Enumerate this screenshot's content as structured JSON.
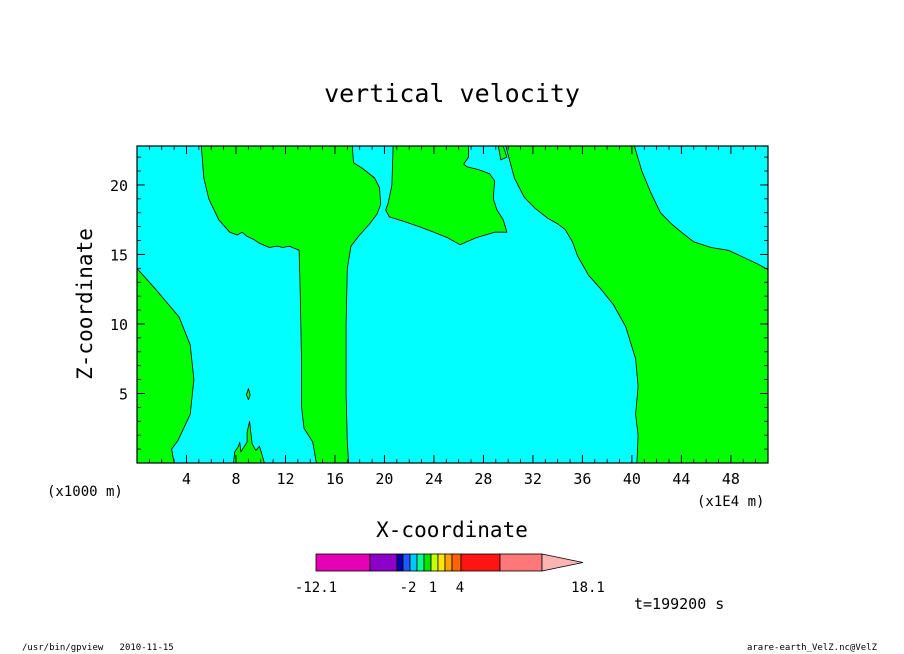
{
  "chart_data": {
    "type": "contour",
    "title": "vertical velocity",
    "xlabel": "X-coordinate",
    "ylabel": "Z-coordinate",
    "x_unit": "(x1E4 m)",
    "y_unit": "(x1000 m)",
    "x_ticks": [
      "4",
      "8",
      "12",
      "16",
      "20",
      "24",
      "28",
      "32",
      "36",
      "40",
      "44",
      "48"
    ],
    "y_ticks": [
      "5",
      "10",
      "15",
      "20"
    ],
    "xlim": [
      0,
      51
    ],
    "ylim": [
      0,
      22.8
    ],
    "regions": [
      {
        "name": "region-left-bottom",
        "fill": "#00ff00",
        "points": [
          [
            0,
            14
          ],
          [
            1.5,
            12.5
          ],
          [
            3.4,
            10.5
          ],
          [
            4.3,
            8.5
          ],
          [
            4.6,
            6
          ],
          [
            4.3,
            3.5
          ],
          [
            3.3,
            1.6
          ],
          [
            2.8,
            1
          ],
          [
            3,
            0
          ],
          [
            0,
            0
          ]
        ]
      },
      {
        "name": "region-upper-left-plume",
        "fill": "#00ff00",
        "points": [
          [
            5.2,
            22.8
          ],
          [
            5.4,
            20.5
          ],
          [
            5.8,
            19
          ],
          [
            6.6,
            17.5
          ],
          [
            7.5,
            16.6
          ],
          [
            8.1,
            16.4
          ],
          [
            8.5,
            16.6
          ],
          [
            8.9,
            16.3
          ],
          [
            9.4,
            16.1
          ],
          [
            9.9,
            15.8
          ],
          [
            10.7,
            15.5
          ],
          [
            11.3,
            15.6
          ],
          [
            11.8,
            15.5
          ],
          [
            12.3,
            15.6
          ],
          [
            13.1,
            15.3
          ],
          [
            13.2,
            12
          ],
          [
            13.3,
            7
          ],
          [
            13.3,
            4
          ],
          [
            13.5,
            2.5
          ],
          [
            14.2,
            1.5
          ],
          [
            14.5,
            0
          ],
          [
            17.1,
            0
          ],
          [
            17,
            1.5
          ],
          [
            16.9,
            5
          ],
          [
            16.9,
            10
          ],
          [
            17,
            14
          ],
          [
            17.3,
            15.6
          ],
          [
            17.9,
            16.3
          ],
          [
            18.8,
            17.2
          ],
          [
            19.4,
            17.9
          ],
          [
            19.7,
            18.6
          ],
          [
            19.6,
            19.8
          ],
          [
            19.2,
            20.5
          ],
          [
            18.2,
            21.2
          ],
          [
            17.5,
            21.6
          ],
          [
            17.4,
            22.8
          ]
        ]
      },
      {
        "name": "region-upper-center",
        "fill": "#00ff00",
        "points": [
          [
            20.7,
            22.8
          ],
          [
            20.6,
            20
          ],
          [
            20.3,
            18.7
          ],
          [
            20.1,
            18.2
          ],
          [
            20.4,
            17.7
          ],
          [
            21.5,
            17.4
          ],
          [
            22.8,
            17
          ],
          [
            24,
            16.6
          ],
          [
            25.1,
            16.2
          ],
          [
            26.1,
            15.7
          ],
          [
            27.4,
            16.2
          ],
          [
            28.9,
            16.6
          ],
          [
            29.9,
            16.6
          ],
          [
            29.6,
            17.5
          ],
          [
            29.1,
            18.2
          ],
          [
            28.8,
            19
          ],
          [
            28.9,
            20.3
          ],
          [
            28.5,
            20.8
          ],
          [
            27.6,
            21.1
          ],
          [
            26.7,
            21.3
          ],
          [
            26.4,
            21.5
          ],
          [
            26.8,
            22
          ],
          [
            26.8,
            22.8
          ],
          [
            29.6,
            22.8
          ],
          [
            29.9,
            22
          ],
          [
            29.4,
            21.8
          ],
          [
            29.2,
            22.8
          ]
        ]
      },
      {
        "name": "region-right",
        "fill": "#00ff00",
        "points": [
          [
            29.8,
            22.8
          ],
          [
            30.5,
            20.5
          ],
          [
            31.3,
            19.1
          ],
          [
            32.2,
            18.3
          ],
          [
            33.2,
            17.6
          ],
          [
            34,
            17.2
          ],
          [
            34.6,
            16.8
          ],
          [
            35.2,
            15.9
          ],
          [
            35.6,
            14.9
          ],
          [
            36.5,
            13.5
          ],
          [
            37.5,
            12.5
          ],
          [
            38.5,
            11.4
          ],
          [
            39.5,
            9.8
          ],
          [
            40.3,
            7.5
          ],
          [
            40.5,
            5.5
          ],
          [
            40.3,
            3.5
          ],
          [
            40.5,
            2
          ],
          [
            40.4,
            0
          ],
          [
            51,
            0
          ],
          [
            51,
            13.9
          ],
          [
            50.2,
            14.3
          ],
          [
            49,
            14.8
          ],
          [
            47.8,
            15.3
          ],
          [
            46.4,
            15.5
          ],
          [
            45,
            15.9
          ],
          [
            44,
            16.6
          ],
          [
            43.2,
            17.2
          ],
          [
            42.3,
            18
          ],
          [
            41.5,
            19.5
          ],
          [
            40.8,
            21
          ],
          [
            40.2,
            22.8
          ]
        ]
      },
      {
        "name": "region-bottom-spikes",
        "fill": "#00ff00",
        "points": [
          [
            7.8,
            0
          ],
          [
            7.9,
            0.8
          ],
          [
            8.2,
            1.2
          ],
          [
            8.3,
            1.5
          ],
          [
            8.4,
            0.8
          ],
          [
            8.6,
            1.1
          ],
          [
            8.9,
            1.5
          ],
          [
            8.9,
            2.2
          ],
          [
            9.1,
            3
          ],
          [
            9.2,
            2.2
          ],
          [
            9.3,
            1.4
          ],
          [
            9.6,
            0.9
          ],
          [
            9.9,
            1.2
          ],
          [
            10.1,
            0.6
          ],
          [
            10.3,
            0
          ]
        ]
      },
      {
        "name": "region-bottom-speck",
        "fill": "#00ff00",
        "points": [
          [
            8.85,
            4.9
          ],
          [
            9,
            5.35
          ],
          [
            9.15,
            4.9
          ],
          [
            9,
            4.55
          ]
        ]
      }
    ],
    "colorbar": {
      "min_label": "-12.1",
      "max_label": "18.1",
      "labels": [
        "-2",
        "1",
        "4"
      ],
      "colors": [
        "#e600b4",
        "#8c00c8",
        "#0000aa",
        "#1e5aff",
        "#00c8ff",
        "#00ff96",
        "#00e600",
        "#c8ff00",
        "#ffe600",
        "#ffa000",
        "#ff6400",
        "#ff1414",
        "#ff7878",
        "#ffb4b4"
      ]
    },
    "time_label": "t=199200 s",
    "footer_left": "/usr/bin/gpview   2010-11-15",
    "footer_right": "arare-earth_VelZ.nc@VelZ",
    "background_color": "#00ffff"
  }
}
